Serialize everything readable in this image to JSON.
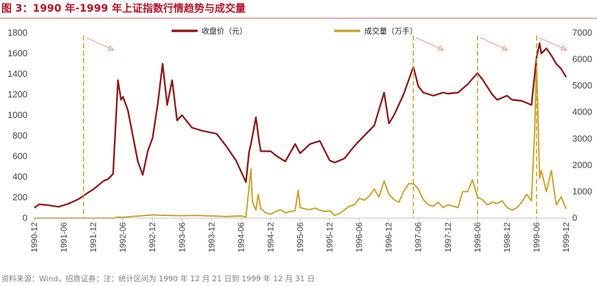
{
  "header": {
    "title": "图 3：1990 年-1999 年上证指数行情趋势与成交量"
  },
  "footer": {
    "source": "资料来源：Wind，招商证券；注：统计区间为 1990 年 12 月 21 日到 1999 年 12 月 31 日"
  },
  "chart_data": {
    "type": "line",
    "title": "",
    "x_axis": {
      "tick_labels": [
        "1990-12",
        "1991-06",
        "1991-12",
        "1992-06",
        "1992-12",
        "1993-06",
        "1993-12",
        "1994-06",
        "1994-12",
        "1995-06",
        "1995-12",
        "1996-06",
        "1996-12",
        "1997-06",
        "1997-12",
        "1998-06",
        "1998-12",
        "1999-06",
        "1999-12"
      ]
    },
    "y_axis_left": {
      "min": 0,
      "max": 1800,
      "ticks": [
        0,
        200,
        400,
        600,
        800,
        1000,
        1200,
        1400,
        1600,
        1800
      ]
    },
    "y_axis_right": {
      "min": 0,
      "max": 7000,
      "ticks": [
        0,
        1000,
        2000,
        3000,
        4000,
        5000,
        6000,
        7000
      ]
    },
    "legend": {
      "placement": "top-center"
    },
    "series": [
      {
        "name": "收盘价（元）",
        "axis": "left",
        "color": "#8b1a1a",
        "points": [
          [
            "1990-12",
            100
          ],
          [
            "1991-01",
            135
          ],
          [
            "1991-03",
            125
          ],
          [
            "1991-05",
            110
          ],
          [
            "1991-07",
            140
          ],
          [
            "1991-09",
            185
          ],
          [
            "1991-11",
            250
          ],
          [
            "1991-12",
            280
          ],
          [
            "1992-01",
            320
          ],
          [
            "1992-02",
            360
          ],
          [
            "1992-03",
            380
          ],
          [
            "1992-04",
            430
          ],
          [
            "1992-05",
            1340
          ],
          [
            "1992-05-20",
            1150
          ],
          [
            "1992-06",
            1180
          ],
          [
            "1992-07",
            1050
          ],
          [
            "1992-08",
            800
          ],
          [
            "1992-09",
            550
          ],
          [
            "1992-10",
            420
          ],
          [
            "1992-11",
            650
          ],
          [
            "1992-12",
            780
          ],
          [
            "1993-01",
            1100
          ],
          [
            "1993-02",
            1500
          ],
          [
            "1993-03",
            1100
          ],
          [
            "1993-04",
            1340
          ],
          [
            "1993-05",
            950
          ],
          [
            "1993-06",
            1000
          ],
          [
            "1993-08",
            880
          ],
          [
            "1993-10",
            850
          ],
          [
            "1993-12",
            830
          ],
          [
            "1994-01",
            820
          ],
          [
            "1994-03",
            700
          ],
          [
            "1994-05",
            560
          ],
          [
            "1994-07",
            350
          ],
          [
            "1994-07-20",
            640
          ],
          [
            "1994-08",
            720
          ],
          [
            "1994-09",
            980
          ],
          [
            "1994-09-20",
            750
          ],
          [
            "1994-10",
            650
          ],
          [
            "1994-12",
            650
          ],
          [
            "1995-01",
            610
          ],
          [
            "1995-03",
            550
          ],
          [
            "1995-05",
            720
          ],
          [
            "1995-06",
            630
          ],
          [
            "1995-08",
            720
          ],
          [
            "1995-10",
            750
          ],
          [
            "1995-12",
            560
          ],
          [
            "1996-01",
            540
          ],
          [
            "1996-03",
            580
          ],
          [
            "1996-05",
            700
          ],
          [
            "1996-07",
            800
          ],
          [
            "1996-09",
            900
          ],
          [
            "1996-11",
            1220
          ],
          [
            "1996-12",
            920
          ],
          [
            "1997-01",
            1000
          ],
          [
            "1997-03",
            1200
          ],
          [
            "1997-05",
            1470
          ],
          [
            "1997-06",
            1280
          ],
          [
            "1997-07",
            1220
          ],
          [
            "1997-09",
            1190
          ],
          [
            "1997-11",
            1220
          ],
          [
            "1997-12",
            1210
          ],
          [
            "1998-02",
            1220
          ],
          [
            "1998-04",
            1300
          ],
          [
            "1998-06",
            1410
          ],
          [
            "1998-07",
            1350
          ],
          [
            "1998-09",
            1200
          ],
          [
            "1998-10",
            1150
          ],
          [
            "1998-12",
            1190
          ],
          [
            "1999-01",
            1150
          ],
          [
            "1999-03",
            1140
          ],
          [
            "1999-05",
            1100
          ],
          [
            "1999-06",
            1560
          ],
          [
            "1999-06-20",
            1700
          ],
          [
            "1999-07",
            1600
          ],
          [
            "1999-08",
            1650
          ],
          [
            "1999-09",
            1580
          ],
          [
            "1999-10",
            1500
          ],
          [
            "1999-11",
            1450
          ],
          [
            "1999-12",
            1370
          ]
        ]
      },
      {
        "name": "成交量（万手）",
        "axis": "right",
        "color": "#c9a227",
        "points": [
          [
            "1990-12",
            0
          ],
          [
            "1992-04",
            0
          ],
          [
            "1992-05",
            40
          ],
          [
            "1992-06",
            30
          ],
          [
            "1992-12",
            120
          ],
          [
            "1993-03",
            100
          ],
          [
            "1993-06",
            90
          ],
          [
            "1993-09",
            100
          ],
          [
            "1993-12",
            80
          ],
          [
            "1994-03",
            60
          ],
          [
            "1994-06",
            80
          ],
          [
            "1994-07",
            40
          ],
          [
            "1994-08",
            1850
          ],
          [
            "1994-08-10",
            650
          ],
          [
            "1994-08-20",
            450
          ],
          [
            "1994-09",
            300
          ],
          [
            "1994-09-15",
            900
          ],
          [
            "1994-10",
            350
          ],
          [
            "1994-11",
            200
          ],
          [
            "1994-12",
            150
          ],
          [
            "1995-01",
            250
          ],
          [
            "1995-02",
            320
          ],
          [
            "1995-03",
            200
          ],
          [
            "1995-04",
            250
          ],
          [
            "1995-05",
            280
          ],
          [
            "1995-05-20",
            1050
          ],
          [
            "1995-06",
            400
          ],
          [
            "1995-07",
            350
          ],
          [
            "1995-08",
            320
          ],
          [
            "1995-09",
            380
          ],
          [
            "1995-10",
            300
          ],
          [
            "1995-11",
            250
          ],
          [
            "1995-12",
            280
          ],
          [
            "1996-01",
            100
          ],
          [
            "1996-02",
            180
          ],
          [
            "1996-04",
            450
          ],
          [
            "1996-05",
            500
          ],
          [
            "1996-06",
            750
          ],
          [
            "1996-07",
            680
          ],
          [
            "1996-08",
            830
          ],
          [
            "1996-09",
            1100
          ],
          [
            "1996-10",
            800
          ],
          [
            "1996-11",
            1400
          ],
          [
            "1996-12",
            900
          ],
          [
            "1997-01",
            700
          ],
          [
            "1997-02",
            600
          ],
          [
            "1997-03",
            1000
          ],
          [
            "1997-04",
            1300
          ],
          [
            "1997-05",
            1300
          ],
          [
            "1997-06",
            1100
          ],
          [
            "1997-07",
            700
          ],
          [
            "1997-08",
            500
          ],
          [
            "1997-09",
            450
          ],
          [
            "1997-10",
            600
          ],
          [
            "1997-11",
            400
          ],
          [
            "1997-12",
            500
          ],
          [
            "1998-02",
            400
          ],
          [
            "1998-03",
            1000
          ],
          [
            "1998-04",
            1000
          ],
          [
            "1998-05",
            1450
          ],
          [
            "1998-06",
            800
          ],
          [
            "1998-07",
            700
          ],
          [
            "1998-08",
            500
          ],
          [
            "1998-09",
            600
          ],
          [
            "1998-10",
            550
          ],
          [
            "1998-11",
            650
          ],
          [
            "1998-12",
            400
          ],
          [
            "1999-01",
            300
          ],
          [
            "1999-02",
            400
          ],
          [
            "1999-03",
            600
          ],
          [
            "1999-04",
            900
          ],
          [
            "1999-05",
            650
          ],
          [
            "1999-05-20",
            3200
          ],
          [
            "1999-06",
            6000
          ],
          [
            "1999-06-20",
            1500
          ],
          [
            "1999-07",
            1800
          ],
          [
            "1999-08",
            1000
          ],
          [
            "1999-09",
            1800
          ],
          [
            "1999-10",
            500
          ],
          [
            "1999-11",
            800
          ],
          [
            "1999-12",
            350
          ]
        ]
      }
    ],
    "annotations": {
      "vertical_lines": [
        "1991-10",
        "1997-05",
        "1998-06",
        "1999-06"
      ]
    }
  }
}
